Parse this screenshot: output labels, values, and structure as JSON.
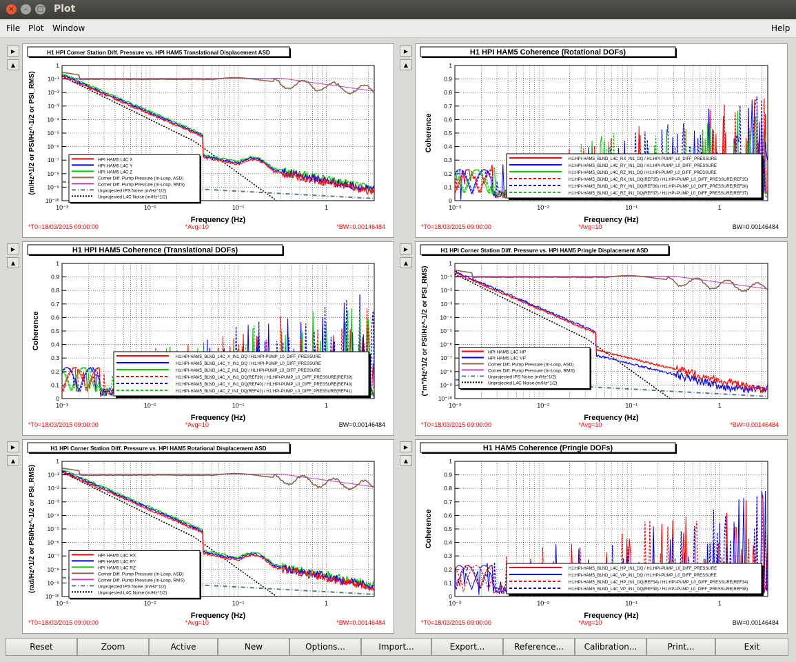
{
  "window": {
    "title": "Plot",
    "close_glyph": "×",
    "minimize_glyph": "–",
    "maximize_glyph": "□"
  },
  "menu": {
    "file": "File",
    "plot": "Plot",
    "window": "Window",
    "help": "Help"
  },
  "buttons": [
    "Reset",
    "Zoom",
    "Active",
    "New",
    "Options...",
    "Import...",
    "Export...",
    "Reference...",
    "Calibration...",
    "Print...",
    "Exit"
  ],
  "panel_controls": {
    "next": "▶",
    "prev": "▲"
  },
  "colors": {
    "red": "#ff0000",
    "blue": "#0000ff",
    "green": "#00cc00",
    "brown": "#8c6450",
    "magenta": "#c040c0",
    "grey": "#5a7888",
    "black": "#000000",
    "footer": "#ff0000"
  },
  "x_ticks": [
    "10⁻³",
    "10⁻²",
    "10⁻¹",
    "1"
  ],
  "asd_y_ticks": [
    "1",
    "10⁻¹",
    "10⁻²",
    "10⁻³",
    "10⁻⁴",
    "10⁻⁵",
    "10⁻⁶",
    "10⁻⁷",
    "10⁻⁸",
    "10⁻⁹",
    "10⁻¹⁰"
  ],
  "coh_y_ticks": [
    "1",
    "0.9",
    "0.8",
    "0.7",
    "0.6",
    "0.5",
    "0.4",
    "0.3",
    "0.2",
    "0.1",
    "0"
  ],
  "panels": [
    {
      "id": "p1",
      "type": "asd",
      "title": "H1 HPI Corner Station Diff. Pressure vs. HPI HAM5 Translational Displacement ASD",
      "ylabel": "(m/Hz^1/2 or PSI/Hz^-1/2 or PSI_RMS)",
      "xlabel": "Frequency (Hz)",
      "footer": {
        "t0": "*T0=18/03/2015 09:00:00",
        "avg": "*Avg=10",
        "bw": "*BW=0.00146484"
      },
      "legend": [
        "HPI HAM5 L4C X",
        "HPI HAM5 L4C Y",
        "HPI HAM5 L4C Z",
        "Corner Diff. Pump Pressure (In-Loop, ASD)",
        "Corner Diff. Pump Pressure (In-Loop, RMS)",
        "Unprojected IPS Noise (m/Hz^1/2)",
        "Unprojected L4C Noise (m/Hz^1/2)"
      ],
      "legend_colors": [
        "red",
        "blue",
        "green",
        "brown",
        "magenta",
        "grey",
        "black"
      ]
    },
    {
      "id": "p2",
      "type": "coh",
      "title": "H1 HPI HAM5 Coherence (Rotational DOFs)",
      "ylabel": "Coherence",
      "xlabel": "Frequency (Hz)",
      "footer": {
        "t0": "*T0=18/03/2015 09:00:00",
        "avg": "*Avg=10",
        "bw": "BW=0.00146484"
      },
      "legend": [
        "H1:HPI-HAM5_BLND_L4C_RX_IN1_DQ / H1:HPI-PUMP_L0_DIFF_PRESSURE",
        "H1:HPI-HAM5_BLND_L4C_RY_IN1_DQ / H1:HPI-PUMP_L0_DIFF_PRESSURE",
        "H1:HPI-HAM5_BLND_L4C_RZ_IN1_DQ / H1:HPI-PUMP_L0_DIFF_PRESSURE",
        "H1:HPI-HAM5_BLND_L4C_RX_IN1_DQ(REF35) / H1:HPI-PUMP_L0_DIFF_PRESSURE(REF35)",
        "H1:HPI-HAM5_BLND_L4C_RY_IN1_DQ(REF36) / H1:HPI-PUMP_L0_DIFF_PRESSURE(REF36)",
        "H1:HPI-HAM5_BLND_L4C_RZ_IN1_DQ(REF37) / H1:HPI-PUMP_L0_DIFF_PRESSURE(REF37)"
      ],
      "legend_colors": [
        "red",
        "blue",
        "green",
        "red",
        "blue",
        "green"
      ],
      "legend_dash": [
        false,
        false,
        false,
        true,
        true,
        true
      ]
    },
    {
      "id": "p3",
      "type": "coh",
      "title": "H1 HPI HAM5 Coherence (Translational DOFs)",
      "ylabel": "Coherence",
      "xlabel": "Frequency (Hz)",
      "footer": {
        "t0": "*T0=18/03/2015 09:00:00",
        "avg": "*Avg=10",
        "bw": "BW=0.00146484"
      },
      "legend": [
        "H1:HPI-HAM5_BLND_L4C_X_IN1_DQ / H1:HPI-PUMP_L0_DIFF_PRESSURE",
        "H1:HPI-HAM5_BLND_L4C_Y_IN1_DQ / H1:HPI-PUMP_L0_DIFF_PRESSURE",
        "H1:HPI-HAM5_BLND_L4C_Z_IN1_DQ / H1:HPI-PUMP_L0_DIFF_PRESSURE",
        "H1:HPI-HAM5_BLND_L4C_X_IN1_DQ(REF39) / H1:HPI-PUMP_L0_DIFF_PRESSURE(REF39)",
        "H1:HPI-HAM5_BLND_L4C_Y_IN1_DQ(REF40) / H1:HPI-PUMP_L0_DIFF_PRESSURE(REF40)",
        "H1:HPI-HAM5_BLND_L4C_Z_IN1_DQ(REF41) / H1:HPI-PUMP_L0_DIFF_PRESSURE(REF41)"
      ],
      "legend_colors": [
        "red",
        "blue",
        "green",
        "red",
        "blue",
        "green"
      ],
      "legend_dash": [
        false,
        false,
        false,
        true,
        true,
        true
      ]
    },
    {
      "id": "p4",
      "type": "asd",
      "title": "H1 HPI Corner Station Diff. Pressure vs. HPI HAM5 Pringle Displacement ASD",
      "ylabel": "(\"m\"/Hz^1/2 or PSI/Hz^-1/2 or PSI_RMS)",
      "xlabel": "Frequency (Hz)",
      "footer": {
        "t0": "*T0=18/03/2015 09:00:00",
        "avg": "*Avg=10",
        "bw": "*BW=0.00146484"
      },
      "legend": [
        "HPI HAM5 L4C HP",
        "HPI HAM5 L4C VP",
        "Corner Diff. Pump Pressure (In-Loop, ASD)",
        "Corner Diff. Pump Pressure (In-Loop, RMS)",
        "Unprojected IPS Noise (m/Hz^1/2)",
        "Unprojected L4C Noise (m/Hz^1/2)"
      ],
      "legend_colors": [
        "red",
        "blue",
        "brown",
        "magenta",
        "grey",
        "black"
      ]
    },
    {
      "id": "p5",
      "type": "asd",
      "title": "H1 HPI Corner Station Diff. Pressure vs. HPI HAM5 Rotational Displacement ASD",
      "ylabel": "(rad/Hz^1/2 or PSI/Hz^-1/2 or PSI_RMS)",
      "xlabel": "Frequency (Hz)",
      "footer": {
        "t0": "*T0=18/03/2015 09:00:00",
        "avg": "*Avg=10",
        "bw": "*BW=0.00146484"
      },
      "legend": [
        "HPI HAM5 L4C RX",
        "HPI HAM5 L4C RY",
        "HPI HAM5 L4C RZ",
        "Corner Diff. Pump Pressure (In-Loop, ASD)",
        "Corner Diff. Pump Pressure (In-Loop, RMS)",
        "Unprojected IPS Noise (m/Hz^1/2)",
        "Unprojected L4C Noise (m/Hz^1/2)"
      ],
      "legend_colors": [
        "red",
        "blue",
        "green",
        "brown",
        "magenta",
        "grey",
        "black"
      ]
    },
    {
      "id": "p6",
      "type": "coh",
      "title": "H1 HAM5 Coherence (Pringle DOFs)",
      "ylabel": "Coherence",
      "xlabel": "Frequency (Hz)",
      "footer": {
        "t0": "*T0=18/03/2015 09:00:00",
        "avg": "*Avg=10",
        "bw": "BW=0.00146484"
      },
      "legend": [
        "H1:HPI-HAM5_BLND_L4C_HP_IN1_DQ / H1:HPI-PUMP_L0_DIFF_PRESSURE",
        "H1:HPI-HAM5_BLND_L4C_VP_IN1_DQ / H1:HPI-PUMP_L0_DIFF_PRESSURE",
        "H1:HPI-HAM5_BLND_L4C_HP_IN1_DQ(REF34) / H1:HPI-PUMP_L0_DIFF_PRESSURE(REF34)",
        "H1:HPI-HAM5_BLND_L4C_VP_IN1_DQ(REF38) / H1:HPI-PUMP_L0_DIFF_PRESSURE(REF38)"
      ],
      "legend_colors": [
        "red",
        "blue",
        "red",
        "blue"
      ],
      "legend_dash": [
        false,
        false,
        true,
        true
      ]
    }
  ]
}
